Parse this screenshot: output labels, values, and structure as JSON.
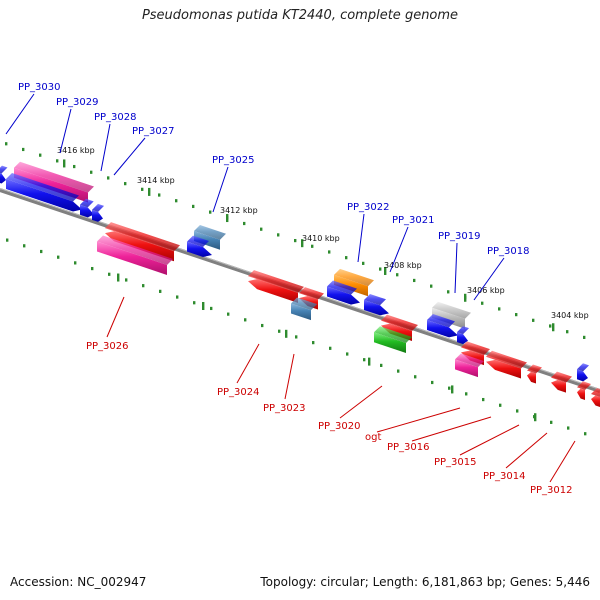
{
  "title": "Pseudomonas putida KT2440, complete genome",
  "footer": {
    "accession": "Accession: NC_002947",
    "topology": "Topology: circular; Length: 6,181,863 bp; Genes: 5,446"
  },
  "colors": {
    "upper_label": "#0000cc",
    "lower_label": "#cc0000",
    "blue": "#1111ee",
    "red": "#ee1111",
    "magenta": "#ee2299",
    "steel": "#4682b4",
    "orange": "#ff8c00",
    "green": "#22bb22",
    "gray": "#bbbbbb",
    "axis": "#808080",
    "dots": "#2e8b2e"
  },
  "scale_ticks": [
    "3416 kbp",
    "3414 kbp",
    "3412 kbp",
    "3410 kbp",
    "3408 kbp",
    "3406 kbp",
    "3404 kbp"
  ],
  "upper_labels": [
    "PP_3030",
    "PP_3029",
    "PP_3028",
    "PP_3027",
    "PP_3025",
    "PP_3022",
    "PP_3021",
    "PP_3019",
    "PP_3018"
  ],
  "lower_labels": [
    "PP_3026",
    "PP_3024",
    "PP_3023",
    "PP_3020",
    "ogt",
    "PP_3016",
    "PP_3015",
    "PP_3014",
    "PP_3012"
  ]
}
